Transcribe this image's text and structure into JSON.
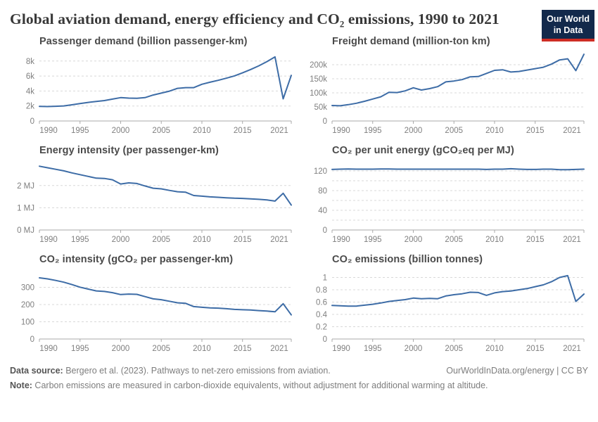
{
  "header": {
    "title": "Global aviation demand, energy efficiency and CO₂ emissions, 1990 to 2021",
    "logo_line1": "Our World",
    "logo_line2": "in Data"
  },
  "footer": {
    "source_label": "Data source:",
    "source_text": " Bergero et al. (2023). Pathways to net-zero emissions from aviation.",
    "credit": "OurWorldInData.org/energy | CC BY",
    "note_label": "Note:",
    "note_text": " Carbon emissions are measured in carbon-dioxide equivalents, without adjustment for additional warming at altitude."
  },
  "colors": {
    "line": "#3D6CA6",
    "grid": "#D8D8D8",
    "axis": "#A9A9A9",
    "tick_text": "#7F7F7F",
    "chart_title": "#4A4A4A",
    "logo_bg": "#12294B",
    "logo_red": "#CE2D24"
  },
  "chart_data": [
    {
      "type": "line",
      "title": "Passenger demand (billion passenger-km)",
      "xlabel": "",
      "ylabel": "",
      "years": [
        1990,
        1991,
        1992,
        1993,
        1994,
        1995,
        1996,
        1997,
        1998,
        1999,
        2000,
        2001,
        2002,
        2003,
        2004,
        2005,
        2006,
        2007,
        2008,
        2009,
        2010,
        2011,
        2012,
        2013,
        2014,
        2015,
        2016,
        2017,
        2018,
        2019,
        2020,
        2021
      ],
      "values": [
        1950,
        1920,
        1960,
        2010,
        2160,
        2320,
        2480,
        2610,
        2720,
        2920,
        3120,
        3050,
        3030,
        3120,
        3460,
        3720,
        3980,
        4360,
        4450,
        4450,
        4900,
        5170,
        5430,
        5710,
        6020,
        6420,
        6870,
        7360,
        7920,
        8550,
        2960,
        6080
      ],
      "ylim": [
        0,
        9200
      ],
      "yticks": [
        {
          "v": 0,
          "label": "0"
        },
        {
          "v": 2000,
          "label": "2k"
        },
        {
          "v": 4000,
          "label": "4k"
        },
        {
          "v": 6000,
          "label": "6k"
        },
        {
          "v": 8000,
          "label": "8k"
        }
      ],
      "grid": [
        2000,
        4000,
        6000,
        8000
      ],
      "xticks": [
        {
          "v": 1990,
          "label": "1990"
        },
        {
          "v": 1995,
          "label": "1995"
        },
        {
          "v": 2000,
          "label": "2000"
        },
        {
          "v": 2005,
          "label": "2005"
        },
        {
          "v": 2010,
          "label": "2010"
        },
        {
          "v": 2015,
          "label": "2015"
        },
        {
          "v": 2021,
          "label": "2021"
        }
      ]
    },
    {
      "type": "line",
      "title": "Freight demand (million-ton km)",
      "xlabel": "",
      "ylabel": "",
      "years": [
        1990,
        1991,
        1992,
        1993,
        1994,
        1995,
        1996,
        1997,
        1998,
        1999,
        2000,
        2001,
        2002,
        2003,
        2004,
        2005,
        2006,
        2007,
        2008,
        2009,
        2010,
        2011,
        2012,
        2013,
        2014,
        2015,
        2016,
        2017,
        2018,
        2019,
        2020,
        2021
      ],
      "values": [
        55000,
        54000,
        58000,
        63000,
        70000,
        78000,
        86000,
        102000,
        101000,
        107000,
        118000,
        110000,
        115000,
        122000,
        139000,
        142000,
        147000,
        157000,
        158000,
        169000,
        180000,
        182000,
        174000,
        176000,
        181000,
        186000,
        191000,
        202000,
        217000,
        221000,
        179000,
        237000
      ],
      "ylim": [
        0,
        245000
      ],
      "yticks": [
        {
          "v": 0,
          "label": "0"
        },
        {
          "v": 50000,
          "label": "50k"
        },
        {
          "v": 100000,
          "label": "100k"
        },
        {
          "v": 150000,
          "label": "150k"
        },
        {
          "v": 200000,
          "label": "200k"
        }
      ],
      "grid": [
        50000,
        100000,
        150000,
        200000
      ],
      "xticks": [
        {
          "v": 1990,
          "label": "1990"
        },
        {
          "v": 1995,
          "label": "1995"
        },
        {
          "v": 2000,
          "label": "2000"
        },
        {
          "v": 2005,
          "label": "2005"
        },
        {
          "v": 2010,
          "label": "2010"
        },
        {
          "v": 2015,
          "label": "2015"
        },
        {
          "v": 2021,
          "label": "2021"
        }
      ]
    },
    {
      "type": "line",
      "title": "Energy intensity (per passenger-km)",
      "xlabel": "",
      "ylabel": "",
      "years": [
        1990,
        1991,
        1992,
        1993,
        1994,
        1995,
        1996,
        1997,
        1998,
        1999,
        2000,
        2001,
        2002,
        2003,
        2004,
        2005,
        2006,
        2007,
        2008,
        2009,
        2010,
        2011,
        2012,
        2013,
        2014,
        2015,
        2016,
        2017,
        2018,
        2019,
        2020,
        2021
      ],
      "values": [
        2.87,
        2.8,
        2.73,
        2.66,
        2.57,
        2.49,
        2.41,
        2.33,
        2.32,
        2.26,
        2.07,
        2.12,
        2.09,
        1.98,
        1.88,
        1.85,
        1.78,
        1.72,
        1.7,
        1.55,
        1.52,
        1.49,
        1.47,
        1.45,
        1.43,
        1.42,
        1.4,
        1.38,
        1.35,
        1.3,
        1.65,
        1.12
      ],
      "ylim": [
        0,
        3.1
      ],
      "yticks": [
        {
          "v": 0,
          "label": "0 MJ"
        },
        {
          "v": 1,
          "label": "1 MJ"
        },
        {
          "v": 2,
          "label": "2 MJ"
        }
      ],
      "grid": [
        1,
        2
      ],
      "xticks": [
        {
          "v": 1990,
          "label": "1990"
        },
        {
          "v": 1995,
          "label": "1995"
        },
        {
          "v": 2000,
          "label": "2000"
        },
        {
          "v": 2005,
          "label": "2005"
        },
        {
          "v": 2010,
          "label": "2010"
        },
        {
          "v": 2015,
          "label": "2015"
        },
        {
          "v": 2021,
          "label": "2021"
        }
      ]
    },
    {
      "type": "line",
      "title": "CO₂ per unit energy (gCO₂eq per MJ)",
      "xlabel": "",
      "ylabel": "",
      "years": [
        1990,
        1991,
        1992,
        1993,
        1994,
        1995,
        1996,
        1997,
        1998,
        1999,
        2000,
        2001,
        2002,
        2003,
        2004,
        2005,
        2006,
        2007,
        2008,
        2009,
        2010,
        2011,
        2012,
        2013,
        2014,
        2015,
        2016,
        2017,
        2018,
        2019,
        2020,
        2021
      ],
      "values": [
        123,
        123.5,
        124,
        123.5,
        123.5,
        123.5,
        124,
        124,
        123.5,
        123.5,
        123.5,
        123.5,
        123.5,
        123.5,
        123.5,
        123.5,
        123.5,
        123.5,
        123.5,
        123,
        123.5,
        123.5,
        124.5,
        123.5,
        123,
        123,
        123.5,
        123.5,
        122.5,
        122.5,
        123,
        123.5
      ],
      "ylim": [
        0,
        140
      ],
      "yticks": [
        {
          "v": 0,
          "label": "0"
        },
        {
          "v": 40,
          "label": "40"
        },
        {
          "v": 80,
          "label": "80"
        },
        {
          "v": 120,
          "label": "120"
        }
      ],
      "grid": [
        20,
        40,
        60,
        80,
        100,
        120
      ],
      "xticks": [
        {
          "v": 1990,
          "label": "1990"
        },
        {
          "v": 1995,
          "label": "1995"
        },
        {
          "v": 2000,
          "label": "2000"
        },
        {
          "v": 2005,
          "label": "2005"
        },
        {
          "v": 2010,
          "label": "2010"
        },
        {
          "v": 2015,
          "label": "2015"
        },
        {
          "v": 2021,
          "label": "2021"
        }
      ]
    },
    {
      "type": "line",
      "title": "CO₂ intensity (gCO₂ per passenger-km)",
      "xlabel": "",
      "ylabel": "",
      "years": [
        1990,
        1991,
        1992,
        1993,
        1994,
        1995,
        1996,
        1997,
        1998,
        1999,
        2000,
        2001,
        2002,
        2003,
        2004,
        2005,
        2006,
        2007,
        2008,
        2009,
        2010,
        2011,
        2012,
        2013,
        2014,
        2015,
        2016,
        2017,
        2018,
        2019,
        2020,
        2021
      ],
      "values": [
        355,
        349,
        340,
        330,
        316,
        301,
        290,
        279,
        276,
        269,
        258,
        261,
        259,
        246,
        233,
        228,
        219,
        210,
        207,
        188,
        184,
        181,
        179,
        176,
        172,
        170,
        168,
        165,
        162,
        158,
        205,
        140
      ],
      "ylim": [
        0,
        400
      ],
      "yticks": [
        {
          "v": 0,
          "label": "0"
        },
        {
          "v": 100,
          "label": "100"
        },
        {
          "v": 200,
          "label": "200"
        },
        {
          "v": 300,
          "label": "300"
        }
      ],
      "grid": [
        100,
        200,
        300
      ],
      "xticks": [
        {
          "v": 1990,
          "label": "1990"
        },
        {
          "v": 1995,
          "label": "1995"
        },
        {
          "v": 2000,
          "label": "2000"
        },
        {
          "v": 2005,
          "label": "2005"
        },
        {
          "v": 2010,
          "label": "2010"
        },
        {
          "v": 2015,
          "label": "2015"
        },
        {
          "v": 2021,
          "label": "2021"
        }
      ]
    },
    {
      "type": "line",
      "title": "CO₂ emissions (billion tonnes)",
      "xlabel": "",
      "ylabel": "",
      "years": [
        1990,
        1991,
        1992,
        1993,
        1994,
        1995,
        1996,
        1997,
        1998,
        1999,
        2000,
        2001,
        2002,
        2003,
        2004,
        2005,
        2006,
        2007,
        2008,
        2009,
        2010,
        2011,
        2012,
        2013,
        2014,
        2015,
        2016,
        2017,
        2018,
        2019,
        2020,
        2021
      ],
      "values": [
        0.545,
        0.54,
        0.535,
        0.535,
        0.55,
        0.565,
        0.585,
        0.61,
        0.625,
        0.64,
        0.665,
        0.655,
        0.66,
        0.655,
        0.7,
        0.72,
        0.735,
        0.76,
        0.755,
        0.71,
        0.75,
        0.77,
        0.78,
        0.8,
        0.82,
        0.85,
        0.88,
        0.93,
        1.0,
        1.03,
        0.61,
        0.73
      ],
      "ylim": [
        0,
        1.12
      ],
      "yticks": [
        {
          "v": 0,
          "label": "0"
        },
        {
          "v": 0.2,
          "label": "0.2"
        },
        {
          "v": 0.4,
          "label": "0.4"
        },
        {
          "v": 0.6,
          "label": "0.6"
        },
        {
          "v": 0.8,
          "label": "0.8"
        },
        {
          "v": 1,
          "label": "1"
        }
      ],
      "grid": [
        0.2,
        0.4,
        0.6,
        0.8,
        1
      ],
      "xticks": [
        {
          "v": 1990,
          "label": "1990"
        },
        {
          "v": 1995,
          "label": "1995"
        },
        {
          "v": 2000,
          "label": "2000"
        },
        {
          "v": 2005,
          "label": "2005"
        },
        {
          "v": 2010,
          "label": "2010"
        },
        {
          "v": 2015,
          "label": "2015"
        },
        {
          "v": 2021,
          "label": "2021"
        }
      ]
    }
  ]
}
